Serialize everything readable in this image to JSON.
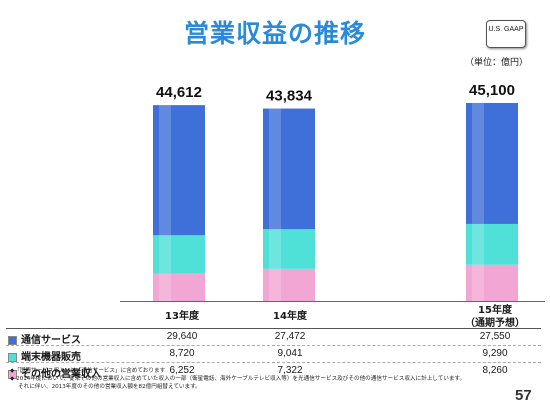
{
  "page": {
    "title": "営業収益の推移",
    "badge": "U.S. GAAP",
    "unit": "（単位：億円）",
    "page_number": "57",
    "notes": [
      "◆「国際サービス収入」は「通信サービス」に含めております",
      "◆ 2014年度において、従来その他の営業収入に含めていた収入の一部（衛星電話、海外ケーブルテレビ収入等）を光通信サービス及びその他の通信サービス収入に計上しています。",
      "それに伴い、2013年度のその他の営業収入額を82億円組替えています。"
    ]
  },
  "chart_data": {
    "type": "bar",
    "stacked": true,
    "categories": [
      "13年度",
      "14年度",
      "15年度\n（通期予想）"
    ],
    "totals": [
      "44,612",
      "43,834",
      "45,100"
    ],
    "series": [
      {
        "name": "その他の営業収入",
        "color": "#f2a6d3",
        "values": [
          6252,
          7322,
          8260
        ],
        "labels": [
          "6,252",
          "7,322",
          "8,260"
        ]
      },
      {
        "name": "端末機器販売",
        "color": "#4fe0d8",
        "values": [
          8720,
          9041,
          9290
        ],
        "labels": [
          "8,720",
          "9,041",
          "9,290"
        ]
      },
      {
        "name": "通信サービス",
        "color": "#3f6fd8",
        "values": [
          29640,
          27472,
          27550
        ],
        "labels": [
          "29,640",
          "27,472",
          "27,550"
        ]
      }
    ],
    "ylim": [
      0,
      45100
    ],
    "grid": false
  },
  "table": {
    "rows": [
      {
        "label": "通信サービス",
        "color": "#3f6fd8"
      },
      {
        "label": "端末機器販売",
        "color": "#4fe0d8"
      },
      {
        "label": "その他の営業収入",
        "color": "#f2a6d3"
      }
    ]
  }
}
